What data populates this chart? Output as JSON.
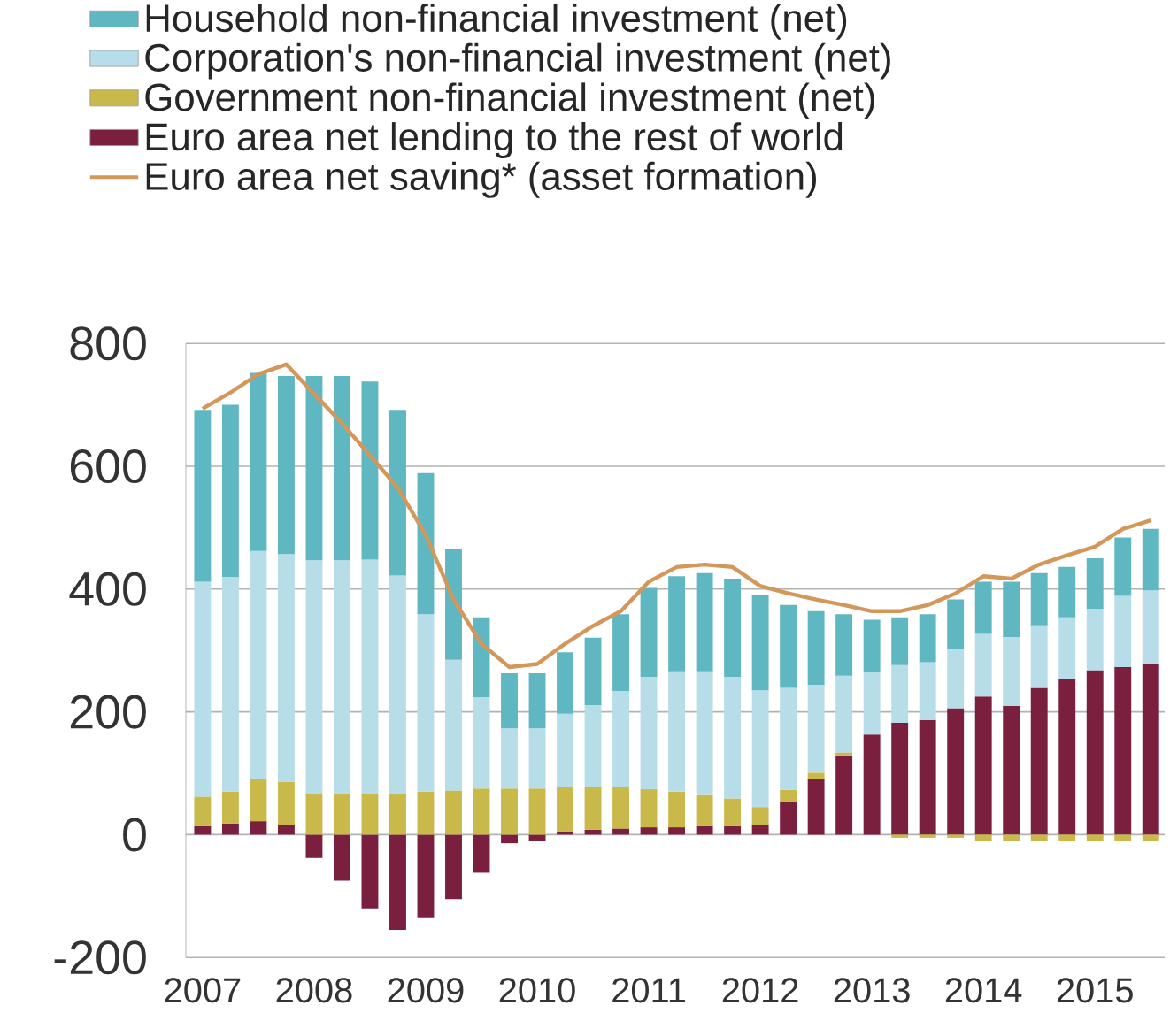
{
  "chart_data": {
    "type": "bar",
    "stacked": true,
    "categories": [
      "2007",
      null,
      null,
      null,
      "2008",
      null,
      null,
      null,
      "2009",
      null,
      null,
      null,
      "2010",
      null,
      null,
      null,
      "2011",
      null,
      null,
      null,
      "2012",
      null,
      null,
      null,
      "2013",
      null,
      null,
      null,
      "2014",
      null,
      null,
      null,
      "2015",
      null,
      null
    ],
    "series": [
      {
        "name": "Euro area net lending to the rest of world",
        "color": "#7a1f3d",
        "values": [
          14,
          18,
          22,
          15,
          -38,
          -75,
          -120,
          -155,
          -136,
          -105,
          -62,
          -14,
          -10,
          5,
          8,
          10,
          12,
          12,
          14,
          14,
          15,
          53,
          91,
          129,
          163,
          182,
          187,
          206,
          225,
          210,
          239,
          254,
          268,
          273,
          278
        ]
      },
      {
        "name": "Government non-financial investment (net)",
        "color": "#c9b84a",
        "values": [
          48,
          52,
          69,
          71,
          67,
          67,
          67,
          67,
          70,
          72,
          75,
          75,
          75,
          72,
          70,
          68,
          62,
          58,
          52,
          45,
          30,
          20,
          10,
          5,
          0,
          -5,
          -5,
          -5,
          -10,
          -10,
          -10,
          -10,
          -10,
          -10,
          -10
        ]
      },
      {
        "name": "Corporation's non-financial investment (net)",
        "color": "#b7dde8",
        "values": [
          350,
          350,
          371,
          371,
          380,
          380,
          381,
          355,
          289,
          213,
          149,
          98,
          98,
          120,
          133,
          156,
          183,
          196,
          200,
          198,
          190,
          166,
          143,
          125,
          102,
          94,
          94,
          97,
          102,
          112,
          102,
          100,
          100,
          116,
          120
        ]
      },
      {
        "name": "Household non-financial investment (net)",
        "color": "#5fb7c2",
        "values": [
          280,
          280,
          290,
          290,
          300,
          300,
          290,
          270,
          230,
          180,
          130,
          90,
          90,
          100,
          110,
          125,
          145,
          155,
          160,
          160,
          155,
          135,
          120,
          100,
          85,
          78,
          78,
          80,
          85,
          90,
          85,
          82,
          82,
          95,
          100
        ]
      },
      {
        "name": "Euro area net saving* (asset formation)",
        "type": "line",
        "color": "#d4975a",
        "values": [
          694,
          720,
          750,
          766,
          718,
          670,
          618,
          565,
          488,
          383,
          311,
          273,
          278,
          311,
          340,
          364,
          412,
          436,
          440,
          436,
          405,
          393,
          383,
          374,
          364,
          364,
          374,
          393,
          421,
          417,
          440,
          455,
          469,
          498,
          512
        ]
      }
    ],
    "ylim": [
      -200,
      800
    ],
    "yticks": [
      -200,
      0,
      200,
      400,
      600,
      800
    ],
    "grid": "y",
    "legend": "top",
    "marker": "none",
    "line_style": "solid"
  }
}
